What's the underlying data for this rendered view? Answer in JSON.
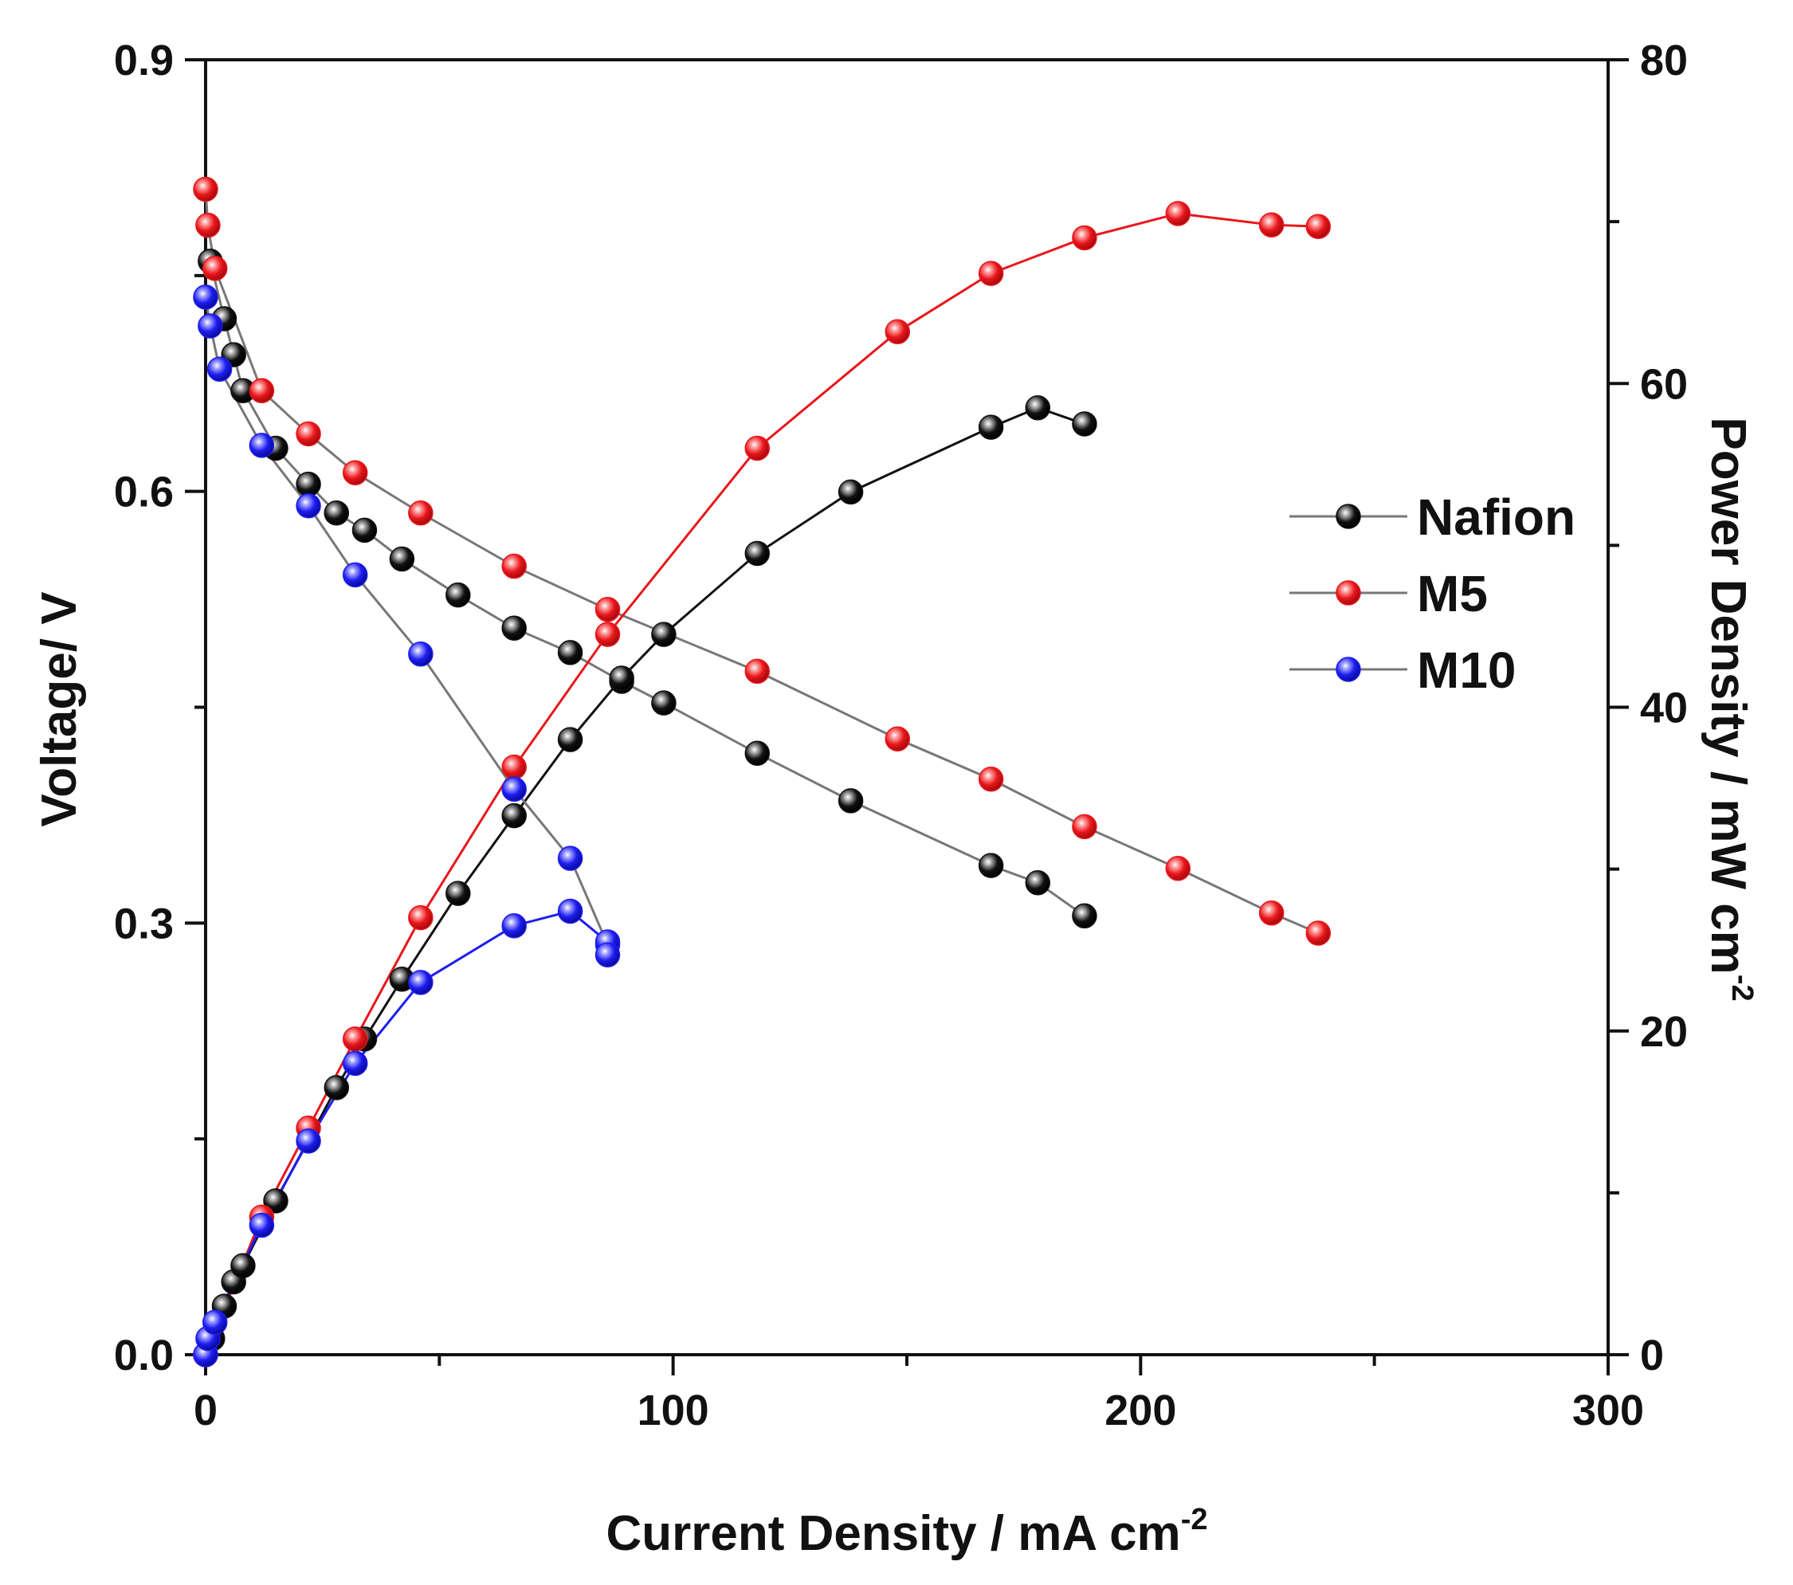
{
  "chart_data": {
    "type": "scatter",
    "subtype": "polarization and power density curves (dual y-axis)",
    "xlabel": "Current Density / mA cm",
    "xlabel_superscript": "-2",
    "ylabel_left": "Voltage/ V",
    "ylabel_right": "Power Density / mW cm",
    "ylabel_right_superscript": "-2",
    "xlim": [
      0,
      300
    ],
    "ylim_left": [
      0,
      0.9
    ],
    "ylim_right": [
      0,
      80
    ],
    "x_ticks": [
      0,
      100,
      200,
      300
    ],
    "x_tick_labels": [
      "0",
      "100",
      "200",
      "300"
    ],
    "y_left_ticks": [
      0,
      0.3,
      0.6,
      0.9
    ],
    "y_left_tick_labels": [
      "0.0",
      "0.3",
      "0.6",
      "0.9"
    ],
    "y_right_ticks": [
      0,
      20,
      40,
      60,
      80
    ],
    "y_right_tick_labels": [
      "0",
      "20",
      "40",
      "60",
      "80"
    ],
    "legend": [
      "Nafion",
      "M5",
      "M10"
    ],
    "legend_position": "center-right",
    "series": [
      {
        "name": "Nafion",
        "color": "#111111",
        "line_color": "#777777",
        "power_line_color": "#111111",
        "polarization": {
          "x": [
            1,
            4,
            6,
            8,
            15,
            22,
            28,
            34,
            42,
            54,
            66,
            78,
            89,
            98,
            118,
            138,
            168,
            178,
            188
          ],
          "y": [
            0.76,
            0.72,
            0.695,
            0.67,
            0.63,
            0.605,
            0.585,
            0.573,
            0.553,
            0.528,
            0.505,
            0.488,
            0.468,
            0.453,
            0.418,
            0.385,
            0.34,
            0.328,
            0.305
          ]
        },
        "power": {
          "x": [
            0,
            1.5,
            4,
            6,
            8,
            15,
            28,
            34,
            42,
            54,
            66,
            78,
            89,
            98,
            118,
            138,
            168,
            178,
            188
          ],
          "y": [
            0,
            1,
            3,
            4.5,
            5.5,
            9.5,
            16.5,
            19.5,
            23.2,
            28.5,
            33.3,
            38,
            41.8,
            44.5,
            49.5,
            53.3,
            57.3,
            58.5,
            57.5
          ]
        }
      },
      {
        "name": "M5",
        "color": "#e8161b",
        "line_color": "#777777",
        "power_line_color": "#e8161b",
        "polarization": {
          "x": [
            0,
            0.5,
            2,
            12,
            22,
            32,
            46,
            66,
            86,
            118,
            148,
            168,
            188,
            208,
            228,
            238
          ],
          "y": [
            0.81,
            0.785,
            0.755,
            0.67,
            0.64,
            0.613,
            0.585,
            0.548,
            0.518,
            0.475,
            0.428,
            0.4,
            0.367,
            0.338,
            0.307,
            0.293
          ]
        },
        "power": {
          "x": [
            0,
            12,
            22,
            32,
            46,
            66,
            86,
            118,
            148,
            168,
            188,
            208,
            228,
            238
          ],
          "y": [
            0,
            8.5,
            14,
            19.5,
            27,
            36.3,
            44.5,
            56,
            63.2,
            66.8,
            69,
            70.5,
            69.8,
            69.7
          ]
        }
      },
      {
        "name": "M10",
        "color": "#1d1df0",
        "line_color": "#777777",
        "power_line_color": "#1d1df0",
        "polarization": {
          "x": [
            0,
            1,
            3,
            12,
            22,
            32,
            46,
            66,
            78,
            86
          ],
          "y": [
            0.735,
            0.715,
            0.685,
            0.632,
            0.59,
            0.542,
            0.487,
            0.393,
            0.345,
            0.285
          ]
        },
        "power": {
          "x": [
            0,
            0.5,
            2,
            12,
            22,
            32,
            46,
            66,
            78,
            86,
            86
          ],
          "y": [
            0,
            1,
            2,
            8,
            13.2,
            18,
            23,
            26.5,
            27.4,
            25.5,
            24.7
          ]
        }
      }
    ]
  }
}
